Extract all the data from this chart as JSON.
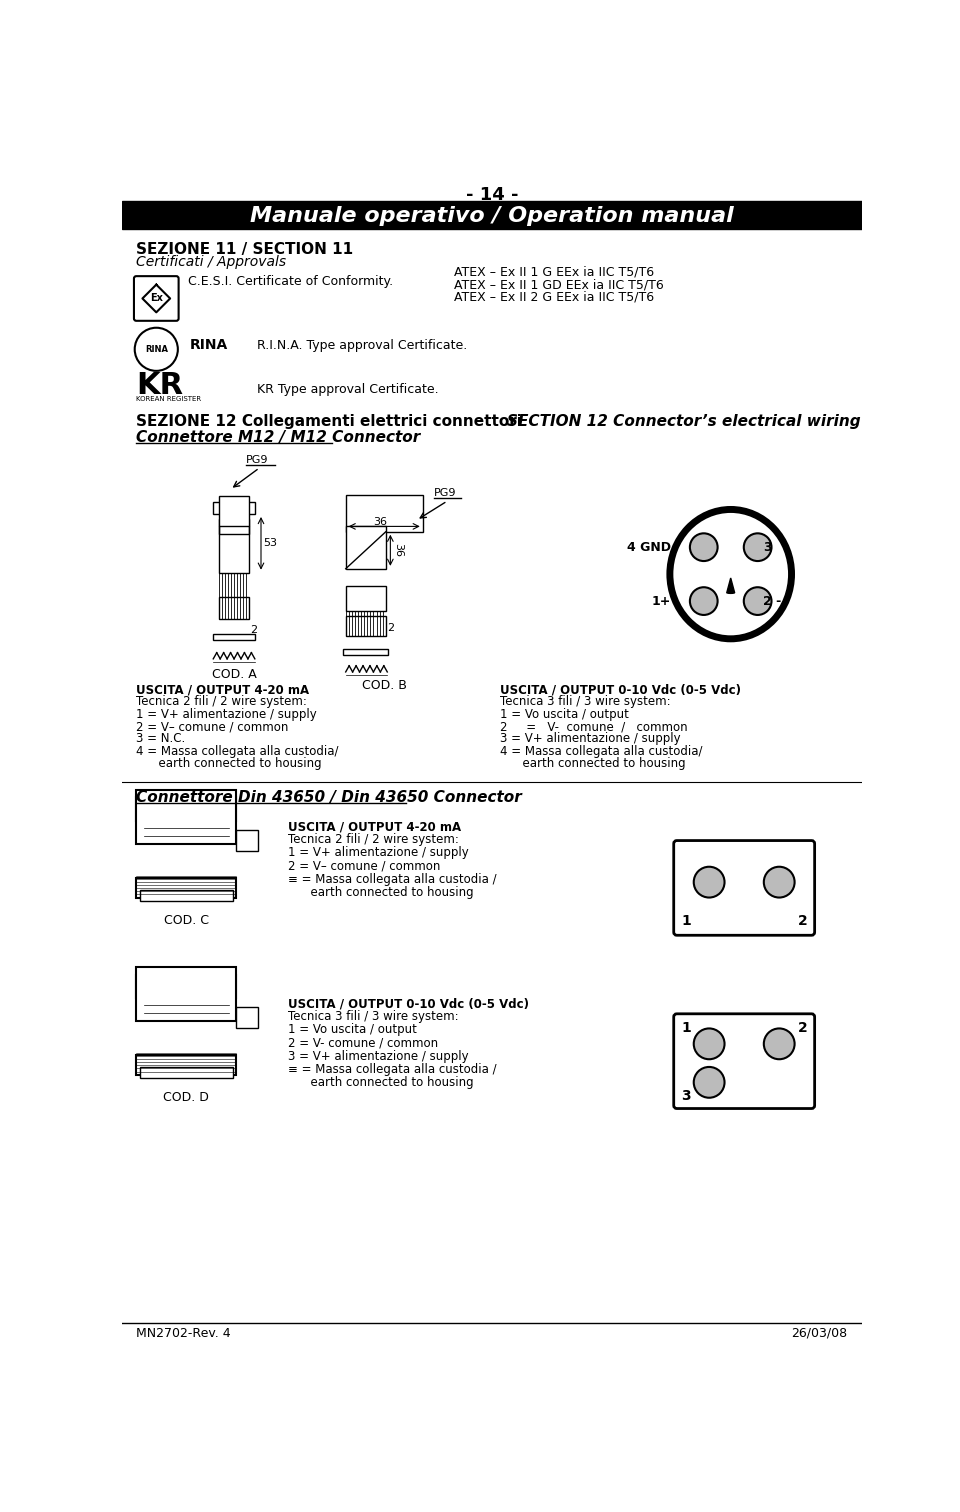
{
  "page_num": "- 14 -",
  "header_title": "Manuale operativo / Operation manual",
  "section11_title": "SEZIONE 11 / SECTION 11",
  "section11_sub": "Certificati / Approvals",
  "cesi_text": "C.E.S.I. Certificate of Conformity.",
  "atex_lines": [
    "ATEX – Ex II 1 G EEx ia IIC T5/T6",
    "ATEX – Ex II 1 GD EEx ia IIC T5/T6",
    "ATEX – Ex II 2 G EEx ia IIC T5/T6"
  ],
  "rina_text": "R.I.N.A. Type approval Certificate.",
  "kr_text": "KR Type approval Certificate.",
  "section12_left": "SEZIONE 12 Collegamenti elettrici connettori",
  "section12_right": "SECTION 12 Connector’s electrical wiring",
  "connector_title": "Connettore M12 / M12 Connector",
  "cod_a_label": "COD. A",
  "cod_b_label": "COD. B",
  "left_output_lines": [
    "USCITA / OUTPUT 4-20 mA",
    "Tecnica 2 fili / 2 wire system:",
    "1 = V+ alimentazione / supply",
    "2 = V– comune / common",
    "3 = N.C.",
    "4 = Massa collegata alla custodia/",
    "      earth connected to housing"
  ],
  "right_output_lines": [
    "USCITA / OUTPUT 0-10 Vdc (0-5 Vdc)",
    "Tecnica 3 fili / 3 wire system:",
    "1 = Vo uscita / output",
    "2     =   V-  comune  /   common",
    "3 = V+ alimentazione / supply",
    "4 = Massa collegata alla custodia/",
    "      earth connected to housing"
  ],
  "din_title": "Connettore Din 43650 / Din 43650 Connector",
  "cod_c_label": "COD. C",
  "cod_d_label": "COD. D",
  "cod_c_lines": [
    "USCITA / OUTPUT 4-20 mA",
    "Tecnica 2 fili / 2 wire system:",
    "1 = V+ alimentazione / supply",
    "2 = V– comune / common",
    "≡ = Massa collegata alla custodia /",
    "      earth connected to housing"
  ],
  "cod_d_lines": [
    "USCITA / OUTPUT 0-10 Vdc (0-5 Vdc)",
    "Tecnica 3 fili / 3 wire system:",
    "1 = Vo uscita / output",
    "2 = V- comune / common",
    "3 = V+ alimentazione / supply",
    "≡ = Massa collegata alla custodia /",
    "      earth connected to housing"
  ],
  "footer_left": "MN2702-Rev. 4",
  "footer_right": "26/03/08",
  "bg_color": "#ffffff",
  "text_color": "#000000",
  "header_bg": "#000000",
  "header_fg": "#ffffff"
}
